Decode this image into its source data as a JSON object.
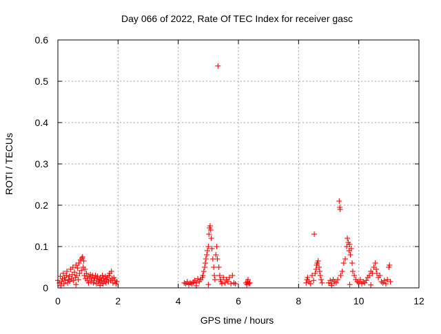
{
  "chart_data": {
    "type": "scatter",
    "title": "Day 066 of 2022, Rate Of TEC Index for receiver gasc",
    "xlabel": "GPS time / hours",
    "ylabel": "ROTI / TECUs",
    "xlim": [
      0,
      12
    ],
    "ylim": [
      0,
      0.6
    ],
    "xticks": [
      "0",
      "2",
      "4",
      "6",
      "8",
      "10",
      "12"
    ],
    "yticks": [
      "0",
      "0.1",
      "0.2",
      "0.3",
      "0.4",
      "0.5",
      "0.6"
    ],
    "grid": true,
    "marker": "plus",
    "colors": {
      "points": "#ff0000",
      "axes": "#000000",
      "grid": "#a0a0a0"
    },
    "series": [
      {
        "values": [
          [
            0.0,
            0.018
          ],
          [
            0.05,
            0.012
          ],
          [
            0.08,
            0.028
          ],
          [
            0.12,
            0.015
          ],
          [
            0.15,
            0.022
          ],
          [
            0.18,
            0.035
          ],
          [
            0.2,
            0.01
          ],
          [
            0.22,
            0.025
          ],
          [
            0.25,
            0.018
          ],
          [
            0.28,
            0.03
          ],
          [
            0.3,
            0.04
          ],
          [
            0.32,
            0.012
          ],
          [
            0.35,
            0.02
          ],
          [
            0.38,
            0.028
          ],
          [
            0.4,
            0.016
          ],
          [
            0.42,
            0.045
          ],
          [
            0.45,
            0.022
          ],
          [
            0.48,
            0.032
          ],
          [
            0.5,
            0.05
          ],
          [
            0.52,
            0.018
          ],
          [
            0.55,
            0.038
          ],
          [
            0.58,
            0.025
          ],
          [
            0.6,
            0.055
          ],
          [
            0.62,
            0.03
          ],
          [
            0.65,
            0.048
          ],
          [
            0.68,
            0.02
          ],
          [
            0.7,
            0.06
          ],
          [
            0.72,
            0.035
          ],
          [
            0.75,
            0.068
          ],
          [
            0.78,
            0.042
          ],
          [
            0.8,
            0.072
          ],
          [
            0.82,
            0.075
          ],
          [
            0.84,
            0.05
          ],
          [
            0.86,
            0.065
          ],
          [
            0.88,
            0.03
          ],
          [
            0.9,
            0.045
          ],
          [
            0.92,
            0.022
          ],
          [
            0.95,
            0.035
          ],
          [
            0.98,
            0.018
          ],
          [
            1.0,
            0.028
          ],
          [
            1.02,
            0.012
          ],
          [
            1.05,
            0.025
          ],
          [
            1.08,
            0.032
          ],
          [
            1.1,
            0.015
          ],
          [
            1.12,
            0.022
          ],
          [
            1.15,
            0.03
          ],
          [
            1.18,
            0.012
          ],
          [
            1.2,
            0.025
          ],
          [
            1.22,
            0.018
          ],
          [
            1.25,
            0.03
          ],
          [
            1.28,
            0.01
          ],
          [
            1.3,
            0.022
          ],
          [
            1.32,
            0.028
          ],
          [
            1.35,
            0.015
          ],
          [
            1.38,
            0.02
          ],
          [
            1.4,
            0.012
          ],
          [
            1.42,
            0.025
          ],
          [
            1.45,
            0.018
          ],
          [
            1.48,
            0.03
          ],
          [
            1.5,
            0.01
          ],
          [
            1.52,
            0.022
          ],
          [
            1.55,
            0.016
          ],
          [
            1.58,
            0.028
          ],
          [
            1.6,
            0.012
          ],
          [
            1.62,
            0.02
          ],
          [
            1.65,
            0.025
          ],
          [
            1.68,
            0.015
          ],
          [
            1.7,
            0.03
          ],
          [
            1.72,
            0.035
          ],
          [
            1.75,
            0.018
          ],
          [
            1.78,
            0.04
          ],
          [
            1.8,
            0.022
          ],
          [
            1.83,
            0.012
          ],
          [
            1.86,
            0.025
          ],
          [
            1.9,
            0.018
          ],
          [
            1.93,
            0.01
          ],
          [
            1.96,
            0.015
          ],
          [
            0.1,
            0.005
          ],
          [
            0.6,
            0.008
          ],
          [
            1.4,
            0.006
          ],
          [
            4.2,
            0.012
          ],
          [
            4.25,
            0.01
          ],
          [
            4.3,
            0.015
          ],
          [
            4.35,
            0.008
          ],
          [
            4.4,
            0.012
          ],
          [
            4.45,
            0.01
          ],
          [
            4.5,
            0.014
          ],
          [
            4.55,
            0.018
          ],
          [
            4.6,
            0.012
          ],
          [
            4.65,
            0.022
          ],
          [
            4.7,
            0.015
          ],
          [
            4.75,
            0.02
          ],
          [
            4.8,
            0.025
          ],
          [
            4.82,
            0.03
          ],
          [
            4.85,
            0.04
          ],
          [
            4.88,
            0.05
          ],
          [
            4.9,
            0.06
          ],
          [
            4.92,
            0.07
          ],
          [
            4.95,
            0.08
          ],
          [
            4.97,
            0.09
          ],
          [
            5.0,
            0.1
          ],
          [
            5.02,
            0.13
          ],
          [
            5.04,
            0.145
          ],
          [
            5.06,
            0.15
          ],
          [
            5.08,
            0.14
          ],
          [
            5.1,
            0.12
          ],
          [
            5.12,
            0.095
          ],
          [
            5.15,
            0.07
          ],
          [
            5.18,
            0.05
          ],
          [
            5.2,
            0.03
          ],
          [
            5.22,
            0.02
          ],
          [
            5.25,
            0.08
          ],
          [
            5.28,
            0.1
          ],
          [
            5.3,
            0.07
          ],
          [
            5.32,
            0.537
          ],
          [
            5.35,
            0.05
          ],
          [
            5.38,
            0.03
          ],
          [
            5.4,
            0.02
          ],
          [
            5.42,
            0.015
          ],
          [
            5.45,
            0.01
          ],
          [
            5.5,
            0.025
          ],
          [
            5.55,
            0.012
          ],
          [
            5.6,
            0.02
          ],
          [
            5.65,
            0.015
          ],
          [
            5.7,
            0.025
          ],
          [
            5.75,
            0.01
          ],
          [
            5.8,
            0.03
          ],
          [
            5.85,
            0.012
          ],
          [
            5.9,
            0.01
          ],
          [
            4.6,
            0.005
          ],
          [
            5.0,
            0.008
          ],
          [
            6.25,
            0.012
          ],
          [
            6.28,
            0.008
          ],
          [
            6.3,
            0.015
          ],
          [
            6.32,
            0.02
          ],
          [
            6.35,
            0.01
          ],
          [
            6.38,
            0.012
          ],
          [
            8.25,
            0.012
          ],
          [
            8.28,
            0.02
          ],
          [
            8.3,
            0.025
          ],
          [
            8.35,
            0.015
          ],
          [
            8.4,
            0.01
          ],
          [
            8.45,
            0.03
          ],
          [
            8.5,
            0.018
          ],
          [
            8.52,
            0.13
          ],
          [
            8.55,
            0.035
          ],
          [
            8.58,
            0.045
          ],
          [
            8.6,
            0.055
          ],
          [
            8.62,
            0.06
          ],
          [
            8.65,
            0.065
          ],
          [
            8.68,
            0.05
          ],
          [
            8.7,
            0.04
          ],
          [
            8.72,
            0.03
          ],
          [
            8.75,
            0.02
          ],
          [
            8.78,
            0.012
          ],
          [
            9.0,
            0.012
          ],
          [
            9.05,
            0.018
          ],
          [
            9.1,
            0.01
          ],
          [
            9.15,
            0.02
          ],
          [
            9.2,
            0.015
          ],
          [
            9.25,
            0.012
          ],
          [
            9.3,
            0.02
          ],
          [
            9.35,
            0.21
          ],
          [
            9.37,
            0.195
          ],
          [
            9.38,
            0.19
          ],
          [
            9.4,
            0.03
          ],
          [
            9.45,
            0.04
          ],
          [
            9.5,
            0.06
          ],
          [
            9.55,
            0.07
          ],
          [
            9.6,
            0.1
          ],
          [
            9.62,
            0.12
          ],
          [
            9.65,
            0.11
          ],
          [
            9.68,
            0.09
          ],
          [
            9.7,
            0.105
          ],
          [
            9.72,
            0.08
          ],
          [
            9.75,
            0.095
          ],
          [
            9.78,
            0.06
          ],
          [
            9.8,
            0.04
          ],
          [
            9.85,
            0.03
          ],
          [
            9.9,
            0.02
          ],
          [
            9.95,
            0.015
          ],
          [
            10.0,
            0.012
          ],
          [
            10.05,
            0.02
          ],
          [
            10.1,
            0.01
          ],
          [
            10.15,
            0.015
          ],
          [
            10.2,
            0.012
          ],
          [
            10.25,
            0.018
          ],
          [
            10.3,
            0.025
          ],
          [
            10.35,
            0.03
          ],
          [
            10.4,
            0.04
          ],
          [
            10.45,
            0.035
          ],
          [
            10.5,
            0.05
          ],
          [
            10.55,
            0.06
          ],
          [
            10.58,
            0.045
          ],
          [
            10.6,
            0.035
          ],
          [
            10.65,
            0.025
          ],
          [
            10.7,
            0.03
          ],
          [
            10.75,
            0.015
          ],
          [
            10.8,
            0.012
          ],
          [
            10.85,
            0.018
          ],
          [
            10.9,
            0.01
          ],
          [
            10.95,
            0.02
          ],
          [
            11.0,
            0.05
          ],
          [
            11.02,
            0.055
          ],
          [
            11.05,
            0.015
          ],
          [
            9.1,
            0.006
          ],
          [
            9.7,
            0.008
          ],
          [
            10.4,
            0.007
          ]
        ]
      }
    ]
  }
}
